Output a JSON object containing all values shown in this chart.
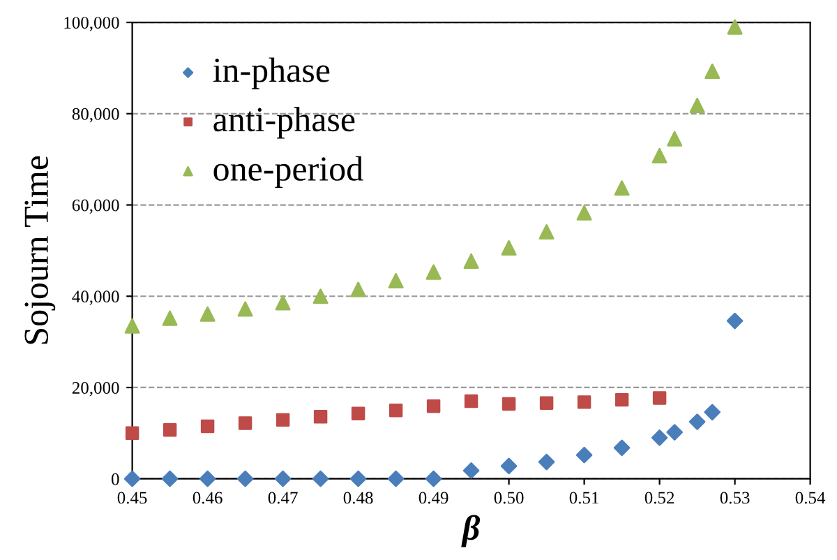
{
  "chart_data": {
    "type": "scatter",
    "xlabel": "β",
    "ylabel": "Sojourn Time",
    "xlim": [
      0.45,
      0.54
    ],
    "xticks": [
      {
        "value": 0.45,
        "label": "0.45"
      },
      {
        "value": 0.46,
        "label": "0.46"
      },
      {
        "value": 0.47,
        "label": "0.47"
      },
      {
        "value": 0.48,
        "label": "0.48"
      },
      {
        "value": 0.49,
        "label": "0.49"
      },
      {
        "value": 0.5,
        "label": "0.50"
      },
      {
        "value": 0.51,
        "label": "0.51"
      },
      {
        "value": 0.52,
        "label": "0.52"
      },
      {
        "value": 0.53,
        "label": "0.53"
      },
      {
        "value": 0.54,
        "label": "0.54"
      }
    ],
    "ylim": [
      0,
      100000
    ],
    "yticks": [
      0,
      {
        "value": 20000,
        "label": "20,000"
      },
      {
        "value": 40000,
        "label": "40,000"
      },
      {
        "value": 60000,
        "label": "60,000"
      },
      {
        "value": 80000,
        "label": "80,000"
      },
      {
        "value": 100000,
        "label": "100,000"
      }
    ],
    "grid": "y",
    "legend": "top left",
    "series": [
      {
        "name": "in-phase",
        "color": "#4a7ebb",
        "marker": "diamond",
        "x": [
          0.45,
          0.455,
          0.46,
          0.465,
          0.47,
          0.475,
          0.48,
          0.485,
          0.49,
          0.495,
          0.5,
          0.505,
          0.51,
          0.515,
          0.52,
          0.522,
          0.525,
          0.527,
          0.53
        ],
        "values": [
          0,
          0,
          0,
          0,
          0,
          0,
          0,
          0,
          0,
          1800,
          2800,
          3700,
          5200,
          6800,
          9000,
          10200,
          12500,
          14600,
          34600
        ]
      },
      {
        "name": "anti-phase",
        "color": "#be4b48",
        "marker": "square",
        "x": [
          0.45,
          0.455,
          0.46,
          0.465,
          0.47,
          0.475,
          0.48,
          0.485,
          0.49,
          0.495,
          0.5,
          0.505,
          0.51,
          0.515,
          0.52
        ],
        "values": [
          10000,
          10700,
          11500,
          12200,
          12900,
          13600,
          14300,
          15000,
          15900,
          17000,
          16400,
          16600,
          16800,
          17300,
          17700
        ]
      },
      {
        "name": "one-period",
        "color": "#98b954",
        "marker": "triangle",
        "x": [
          0.45,
          0.455,
          0.46,
          0.465,
          0.47,
          0.475,
          0.48,
          0.485,
          0.49,
          0.495,
          0.5,
          0.505,
          0.51,
          0.515,
          0.52,
          0.522,
          0.525,
          0.527,
          0.53
        ],
        "values": [
          33500,
          35200,
          36100,
          37200,
          38600,
          40000,
          41500,
          43400,
          45300,
          47700,
          50600,
          54100,
          58300,
          63700,
          70800,
          74500,
          81800,
          89300,
          99000
        ]
      }
    ]
  }
}
